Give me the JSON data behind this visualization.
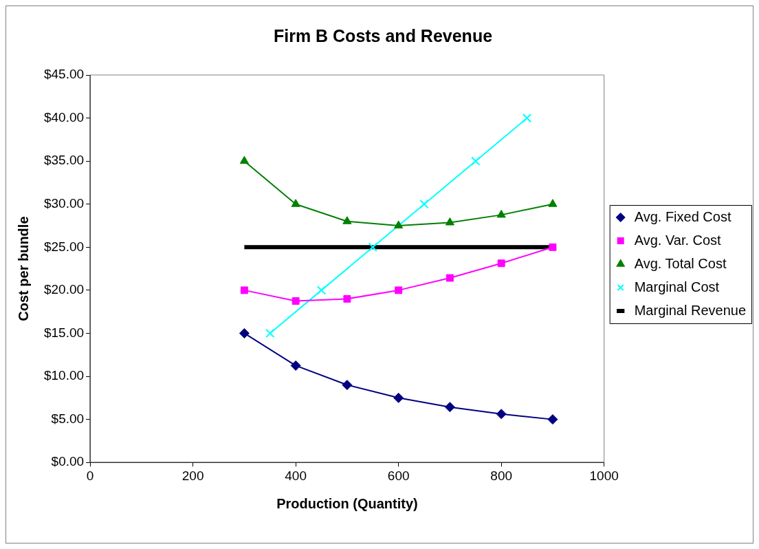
{
  "chart_data": {
    "type": "line",
    "title": "Firm B Costs and Revenue",
    "xlabel": "Production (Quantity)",
    "ylabel": "Cost per bundle",
    "xlim": [
      0,
      1000
    ],
    "xticks": [
      0,
      200,
      400,
      600,
      800,
      1000
    ],
    "ylim": [
      0,
      45
    ],
    "yticks": [
      {
        "value": 0,
        "label": "$0.00"
      },
      {
        "value": 5,
        "label": "$5.00"
      },
      {
        "value": 10,
        "label": "$10.00"
      },
      {
        "value": 15,
        "label": "$15.00"
      },
      {
        "value": 20,
        "label": "$20.00"
      },
      {
        "value": 25,
        "label": "$25.00"
      },
      {
        "value": 30,
        "label": "$30.00"
      },
      {
        "value": 35,
        "label": "$35.00"
      },
      {
        "value": 40,
        "label": "$40.00"
      },
      {
        "value": 45,
        "label": "$45.00"
      }
    ],
    "grid": false,
    "legend": "right",
    "series": [
      {
        "name": "Avg. Fixed Cost",
        "color": "#000080",
        "marker": "diamond",
        "x": [
          300,
          400,
          500,
          600,
          700,
          800,
          900
        ],
        "values": [
          15,
          11.25,
          9,
          7.5,
          6.43,
          5.63,
          5
        ]
      },
      {
        "name": "Avg. Var. Cost",
        "color": "#ff00ff",
        "marker": "square",
        "x": [
          300,
          400,
          500,
          600,
          700,
          800,
          900
        ],
        "values": [
          20,
          18.75,
          19,
          20,
          21.43,
          23.13,
          25
        ]
      },
      {
        "name": "Avg. Total Cost",
        "color": "#008000",
        "marker": "triangle",
        "x": [
          300,
          400,
          500,
          600,
          700,
          800,
          900
        ],
        "values": [
          35,
          30,
          28,
          27.5,
          27.86,
          28.75,
          30
        ]
      },
      {
        "name": "Marginal Cost",
        "color": "#00ffff",
        "marker": "cross",
        "x": [
          350,
          450,
          550,
          650,
          750,
          850
        ],
        "values": [
          15,
          20,
          25,
          30,
          35,
          40
        ]
      },
      {
        "name": "Marginal Revenue",
        "color": "#000000",
        "marker": "none",
        "x": [
          300,
          900
        ],
        "values": [
          25,
          25
        ]
      }
    ]
  }
}
